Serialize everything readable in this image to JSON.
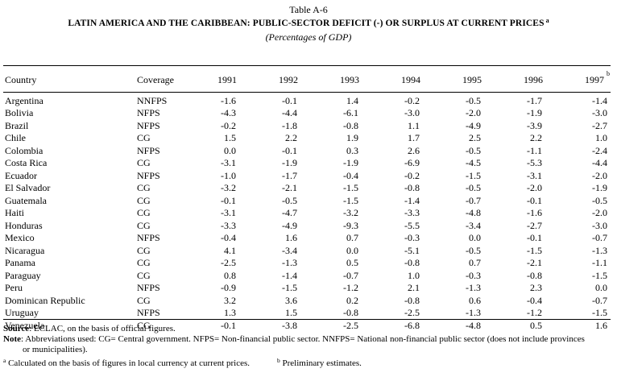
{
  "table_number": "Table A-6",
  "title": "LATIN AMERICA AND THE CARIBBEAN: PUBLIC-SECTOR DEFICIT (-) OR SURPLUS AT CURRENT PRICES",
  "title_marker": "a",
  "subtitle": "(Percentages of GDP)",
  "headers": {
    "country": "Country",
    "coverage": "Coverage",
    "years": [
      "1991",
      "1992",
      "1993",
      "1994",
      "1995",
      "1996",
      "1997"
    ],
    "last_year_marker": "b"
  },
  "rows": [
    {
      "country": "Argentina",
      "coverage": "NNFPS",
      "values": [
        "-1.6",
        "-0.1",
        "1.4",
        "-0.2",
        "-0.5",
        "-1.7",
        "-1.4"
      ]
    },
    {
      "country": "Bolivia",
      "coverage": "NFPS",
      "values": [
        "-4.3",
        "-4.4",
        "-6.1",
        "-3.0",
        "-2.0",
        "-1.9",
        "-3.0"
      ]
    },
    {
      "country": "Brazil",
      "coverage": "NFPS",
      "values": [
        "-0.2",
        "-1.8",
        "-0.8",
        "1.1",
        "-4.9",
        "-3.9",
        "-2.7"
      ]
    },
    {
      "country": "Chile",
      "coverage": "CG",
      "values": [
        "1.5",
        "2.2",
        "1.9",
        "1.7",
        "2.5",
        "2.2",
        "1.0"
      ]
    },
    {
      "country": "Colombia",
      "coverage": "NFPS",
      "values": [
        "0.0",
        "-0.1",
        "0.3",
        "2.6",
        "-0.5",
        "-1.1",
        "-2.4"
      ]
    },
    {
      "country": "Costa Rica",
      "coverage": "CG",
      "values": [
        "-3.1",
        "-1.9",
        "-1.9",
        "-6.9",
        "-4.5",
        "-5.3",
        "-4.4"
      ]
    },
    {
      "country": "Ecuador",
      "coverage": "NFPS",
      "values": [
        "-1.0",
        "-1.7",
        "-0.4",
        "-0.2",
        "-1.5",
        "-3.1",
        "-2.0"
      ]
    },
    {
      "country": "El Salvador",
      "coverage": "CG",
      "values": [
        "-3.2",
        "-2.1",
        "-1.5",
        "-0.8",
        "-0.5",
        "-2.0",
        "-1.9"
      ]
    },
    {
      "country": "Guatemala",
      "coverage": "CG",
      "values": [
        "-0.1",
        "-0.5",
        "-1.5",
        "-1.4",
        "-0.7",
        "-0.1",
        "-0.5"
      ]
    },
    {
      "country": "Haiti",
      "coverage": "CG",
      "values": [
        "-3.1",
        "-4.7",
        "-3.2",
        "-3.3",
        "-4.8",
        "-1.6",
        "-2.0"
      ]
    },
    {
      "country": "Honduras",
      "coverage": "CG",
      "values": [
        "-3.3",
        "-4.9",
        "-9.3",
        "-5.5",
        "-3.4",
        "-2.7",
        "-3.0"
      ]
    },
    {
      "country": "Mexico",
      "coverage": "NFPS",
      "values": [
        "-0.4",
        "1.6",
        "0.7",
        "-0.3",
        "0.0",
        "-0.1",
        "-0.7"
      ]
    },
    {
      "country": "Nicaragua",
      "coverage": "CG",
      "values": [
        "4.1",
        "-3.4",
        "0.0",
        "-5.1",
        "-0.5",
        "-1.5",
        "-1.3"
      ]
    },
    {
      "country": "Panama",
      "coverage": "CG",
      "values": [
        "-2.5",
        "-1.3",
        "0.5",
        "-0.8",
        "0.7",
        "-2.1",
        "-1.1"
      ]
    },
    {
      "country": "Paraguay",
      "coverage": "CG",
      "values": [
        "0.8",
        "-1.4",
        "-0.7",
        "1.0",
        "-0.3",
        "-0.8",
        "-1.5"
      ]
    },
    {
      "country": "Peru",
      "coverage": "NFPS",
      "values": [
        "-0.9",
        "-1.5",
        "-1.2",
        "2.1",
        "-1.3",
        "2.3",
        "0.0"
      ]
    },
    {
      "country": "Dominican Republic",
      "coverage": "CG",
      "values": [
        "3.2",
        "3.6",
        "0.2",
        "-0.8",
        "0.6",
        "-0.4",
        "-0.7"
      ]
    },
    {
      "country": "Uruguay",
      "coverage": "NFPS",
      "values": [
        "1.3",
        "1.5",
        "-0.8",
        "-2.5",
        "-1.3",
        "-1.2",
        "-1.5"
      ]
    },
    {
      "country": "Venezuela",
      "coverage": "CG",
      "values": [
        "-0.1",
        "-3.8",
        "-2.5",
        "-6.8",
        "-4.8",
        "0.5",
        "1.6"
      ]
    }
  ],
  "notes": {
    "source_label": "Source",
    "source_text": ": ECLAC, on the basis of official figures.",
    "note_label": "Note",
    "note_text": ": Abbreviations used: CG= Central government. NFPS= Non-financial public sector. NNFPS= National non-financial public sector (does not include provinces",
    "note_text_cont": "or municipalities).",
    "footnote_a_marker": "a",
    "footnote_a": "Calculated on the basis of figures in local currency at current prices.",
    "footnote_b_marker": "b",
    "footnote_b": "Preliminary estimates."
  }
}
